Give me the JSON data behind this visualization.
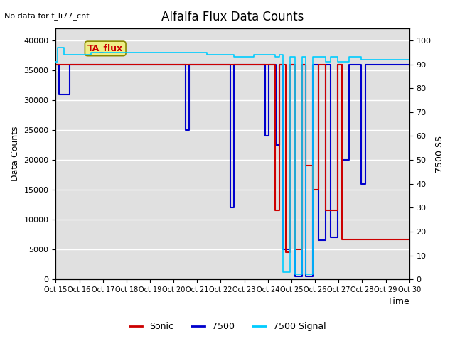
{
  "title": "Alfalfa Flux Data Counts",
  "no_data_label": "No data for f_li77_cnt",
  "ta_flux_label": "TA_flux",
  "xlabel": "Time",
  "ylabel_left": "Data Counts",
  "ylabel_right": "7500 SS",
  "xlim": [
    0,
    15
  ],
  "ylim_left": [
    0,
    42000
  ],
  "ylim_right": [
    0,
    105
  ],
  "xtick_positions": [
    0,
    1,
    2,
    3,
    4,
    5,
    6,
    7,
    8,
    9,
    10,
    11,
    12,
    13,
    14,
    15
  ],
  "xtick_labels": [
    "Oct 15",
    "Oct 16",
    "Oct 17",
    "Oct 18",
    "Oct 19",
    "Oct 20",
    "Oct 21",
    "Oct 22",
    "Oct 23",
    "Oct 24",
    "Oct 25",
    "Oct 26",
    "Oct 27",
    "Oct 28",
    "Oct 29",
    "Oct 30"
  ],
  "yticks_left": [
    0,
    5000,
    10000,
    15000,
    20000,
    25000,
    30000,
    35000,
    40000
  ],
  "yticks_right": [
    0,
    10,
    20,
    30,
    40,
    50,
    60,
    70,
    80,
    90,
    100
  ],
  "background_color": "#e0e0e0",
  "grid_color": "#ffffff",
  "sonic_color": "#cc0000",
  "count7500_color": "#0000cc",
  "signal_color": "#00ccff",
  "legend_entries": [
    "Sonic",
    "7500",
    "7500 Signal"
  ],
  "count7500_x": [
    0,
    0.15,
    0.15,
    0.6,
    0.6,
    5.5,
    5.5,
    5.65,
    5.65,
    6.1,
    6.1,
    7.4,
    7.4,
    7.55,
    7.55,
    7.9,
    7.9,
    8.9,
    8.9,
    9.05,
    9.05,
    9.35,
    9.35,
    9.5,
    9.5,
    9.65,
    9.65,
    9.95,
    9.95,
    10.15,
    10.15,
    10.45,
    10.45,
    10.6,
    10.6,
    10.9,
    10.9,
    11.15,
    11.15,
    11.45,
    11.45,
    11.65,
    11.65,
    11.95,
    11.95,
    12.15,
    12.15,
    12.45,
    12.45,
    12.95,
    12.95,
    13.15,
    13.15,
    15
  ],
  "count7500_y": [
    36000,
    36000,
    31000,
    31000,
    36000,
    36000,
    25000,
    25000,
    36000,
    36000,
    36000,
    36000,
    12000,
    12000,
    36000,
    36000,
    36000,
    36000,
    24000,
    24000,
    36000,
    36000,
    22500,
    22500,
    36000,
    36000,
    5000,
    5000,
    36000,
    36000,
    500,
    500,
    36000,
    36000,
    500,
    500,
    36000,
    36000,
    6500,
    6500,
    36000,
    36000,
    7000,
    7000,
    36000,
    36000,
    20000,
    20000,
    36000,
    36000,
    16000,
    16000,
    36000,
    36000
  ],
  "sonic_x": [
    0,
    9.3,
    9.3,
    9.5,
    9.5,
    9.75,
    9.75,
    9.95,
    9.95,
    10.15,
    10.15,
    10.45,
    10.45,
    10.6,
    10.6,
    10.9,
    10.9,
    11.15,
    11.15,
    11.45,
    11.45,
    11.95,
    11.95,
    12.15,
    12.15,
    15
  ],
  "sonic_y": [
    36000,
    36000,
    11500,
    11500,
    36000,
    36000,
    4500,
    4500,
    36000,
    36000,
    5000,
    5000,
    36000,
    36000,
    19000,
    19000,
    15000,
    15000,
    36000,
    36000,
    11500,
    11500,
    36000,
    36000,
    6700,
    6700
  ],
  "signal_x": [
    0,
    0.08,
    0.08,
    0.35,
    0.35,
    1.5,
    1.5,
    1.75,
    1.75,
    6.4,
    6.4,
    7.4,
    7.4,
    7.55,
    7.55,
    8.4,
    8.4,
    8.9,
    8.9,
    9.3,
    9.3,
    9.5,
    9.5,
    9.65,
    9.65,
    9.95,
    9.95,
    10.15,
    10.15,
    10.45,
    10.45,
    10.6,
    10.6,
    10.9,
    10.9,
    11.45,
    11.45,
    11.65,
    11.65,
    11.95,
    11.95,
    12.45,
    12.45,
    12.95,
    12.95,
    13.15,
    13.15,
    15
  ],
  "signal_y_right": [
    91,
    91,
    97,
    97,
    94,
    94,
    95,
    95,
    95,
    95,
    94,
    94,
    94,
    94,
    93,
    93,
    94,
    94,
    94,
    94,
    93,
    93,
    94,
    94,
    3,
    3,
    93,
    93,
    2,
    2,
    93,
    93,
    2,
    2,
    93,
    93,
    91,
    91,
    93,
    93,
    91,
    91,
    93,
    93,
    92,
    92,
    92,
    92
  ]
}
